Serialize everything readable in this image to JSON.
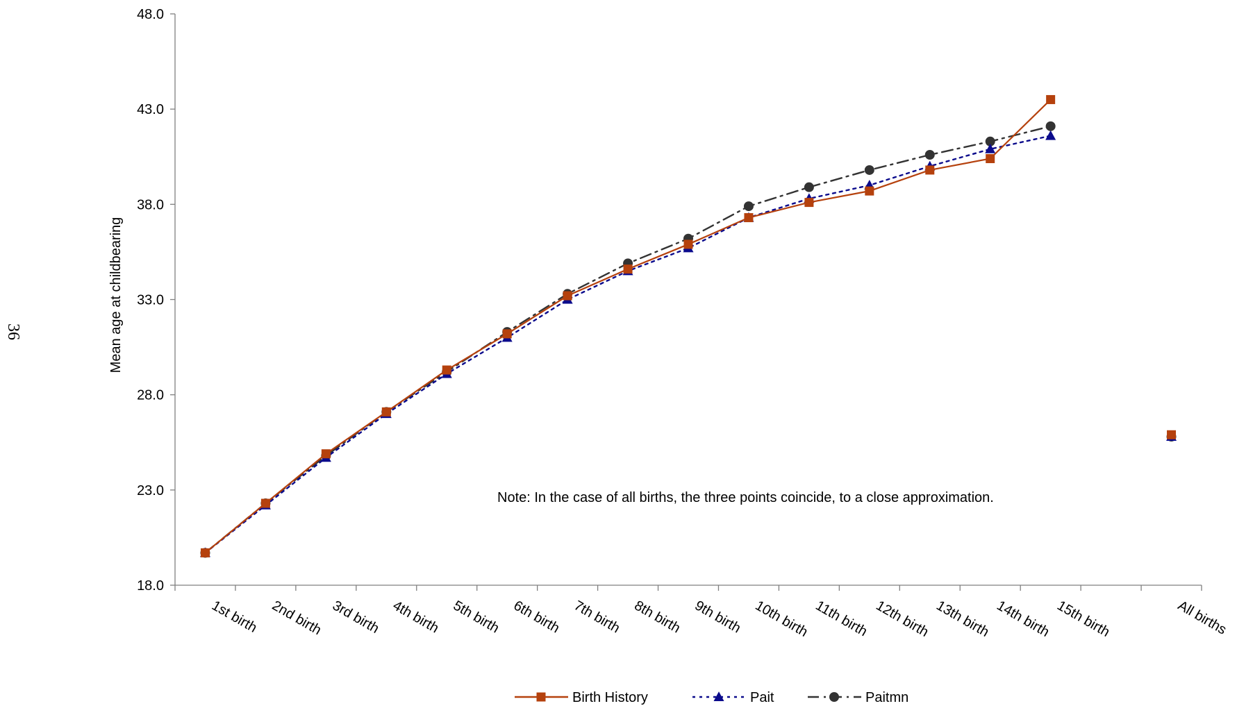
{
  "page_number": "36",
  "note": "Note: In the case of all births, the three points coincide, to a close approximation.",
  "chart_data": {
    "type": "line",
    "title": "",
    "xlabel": "",
    "ylabel": "Mean age at childbearing",
    "ylim": [
      18.0,
      48.0
    ],
    "yticks": [
      "18.0",
      "23.0",
      "28.0",
      "33.0",
      "38.0",
      "43.0",
      "48.0"
    ],
    "categories": [
      "1st birth",
      "2nd birth",
      "3rd birth",
      "4th birth",
      "5th birth",
      "6th birth",
      "7th birth",
      "8th birth",
      "9th birth",
      "10th birth",
      "11th birth",
      "12th birth",
      "13th birth",
      "14th birth",
      "15th birth",
      "",
      "All births"
    ],
    "grid": false,
    "legend_position": "bottom",
    "series": [
      {
        "name": "Birth History",
        "color": "#B5410D",
        "marker": "square",
        "dash": "solid",
        "values": [
          19.7,
          22.3,
          24.9,
          27.1,
          29.3,
          31.2,
          33.2,
          34.6,
          35.9,
          37.3,
          38.1,
          38.7,
          39.8,
          40.4,
          43.5,
          null,
          25.9
        ]
      },
      {
        "name": "Pait",
        "color": "#0B0B8C",
        "marker": "triangle",
        "dash": "dotted",
        "values": [
          19.7,
          22.2,
          24.7,
          27.0,
          29.1,
          31.0,
          33.0,
          34.5,
          35.7,
          37.3,
          38.3,
          39.0,
          40.0,
          40.9,
          41.6,
          null,
          25.8
        ]
      },
      {
        "name": "Paitmn",
        "color": "#333333",
        "marker": "circle",
        "dash": "dashdot",
        "values": [
          19.7,
          22.3,
          24.8,
          27.1,
          29.2,
          31.3,
          33.3,
          34.9,
          36.2,
          37.9,
          38.9,
          39.8,
          40.6,
          41.3,
          42.1,
          null,
          25.8
        ]
      }
    ]
  }
}
